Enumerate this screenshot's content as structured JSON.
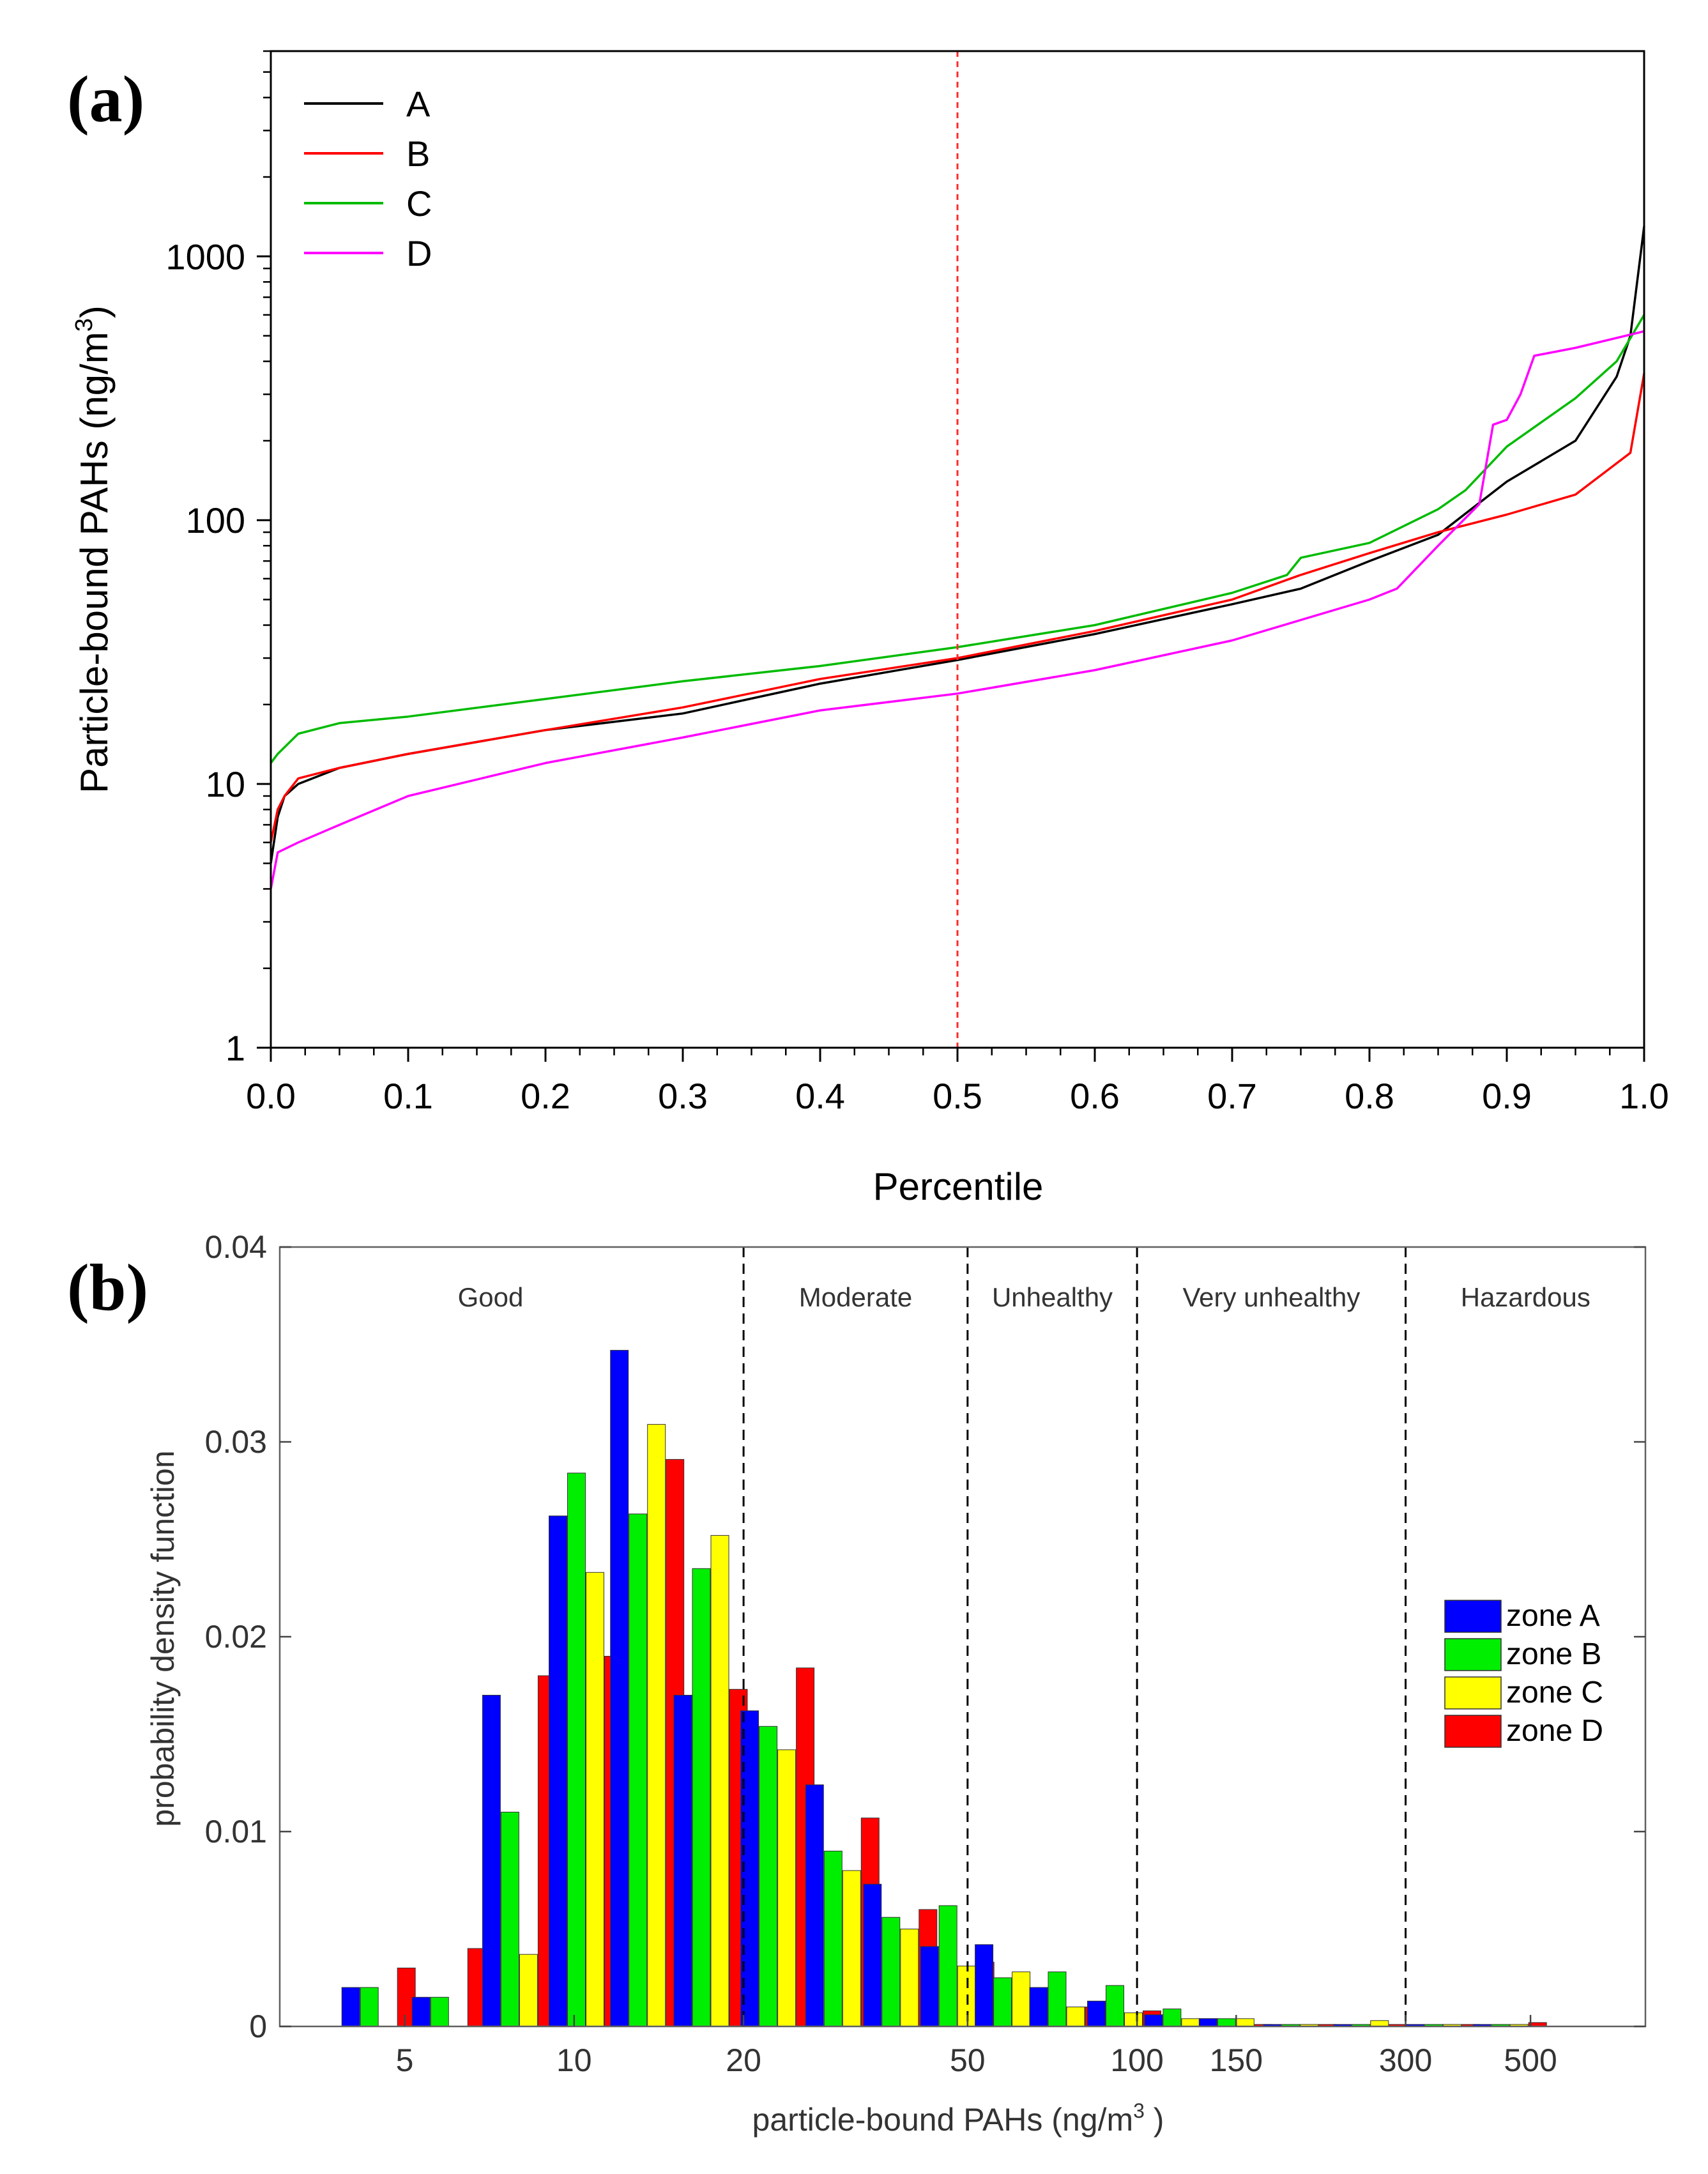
{
  "chart_data": [
    {
      "panel_label": "(a)",
      "type": "line",
      "title": "",
      "xlabel": "Percentile",
      "ylabel": "Particle-bound PAHs (ng/m",
      "ylabel_superscript": "3",
      "ylabel_close": ")",
      "xlim": [
        0,
        1
      ],
      "ylim": [
        1,
        6000
      ],
      "yscale": "log",
      "x_ticks": [
        "0.0",
        "0.1",
        "0.2",
        "0.3",
        "0.4",
        "0.5",
        "0.6",
        "0.7",
        "0.8",
        "0.9",
        "1.0"
      ],
      "y_ticks": [
        "1",
        "10",
        "100",
        "1000"
      ],
      "reference_line": {
        "x": 0.5,
        "style": "dashed",
        "color": "#ff2a2a"
      },
      "legend_position": "top-left",
      "series": [
        {
          "name": "A",
          "color": "#000000",
          "x": [
            0,
            0.005,
            0.01,
            0.02,
            0.05,
            0.1,
            0.2,
            0.3,
            0.4,
            0.5,
            0.6,
            0.7,
            0.75,
            0.8,
            0.85,
            0.9,
            0.95,
            0.98,
            0.99,
            1.0
          ],
          "y": [
            5,
            7.5,
            9,
            10,
            11.5,
            13,
            16,
            18.5,
            24,
            29.5,
            37,
            48,
            55,
            70,
            88,
            140,
            200,
            350,
            500,
            1300
          ]
        },
        {
          "name": "B",
          "color": "#ff0000",
          "x": [
            0,
            0.005,
            0.01,
            0.02,
            0.05,
            0.1,
            0.2,
            0.3,
            0.4,
            0.5,
            0.6,
            0.7,
            0.75,
            0.8,
            0.85,
            0.9,
            0.95,
            0.99,
            1.0
          ],
          "y": [
            6,
            8,
            9,
            10.5,
            11.5,
            13,
            16,
            19.5,
            25,
            30,
            38,
            50,
            62,
            75,
            90,
            105,
            125,
            180,
            360
          ]
        },
        {
          "name": "C",
          "color": "#00bb00",
          "x": [
            0,
            0.005,
            0.02,
            0.05,
            0.1,
            0.2,
            0.3,
            0.4,
            0.5,
            0.6,
            0.7,
            0.74,
            0.75,
            0.8,
            0.85,
            0.87,
            0.9,
            0.95,
            0.98,
            1.0
          ],
          "y": [
            12,
            13,
            15.5,
            17,
            18,
            21,
            24.5,
            28,
            33,
            40,
            53,
            62,
            72,
            82,
            110,
            130,
            190,
            290,
            400,
            600
          ]
        },
        {
          "name": "D",
          "color": "#ff00ff",
          "x": [
            0,
            0.005,
            0.02,
            0.05,
            0.1,
            0.2,
            0.3,
            0.4,
            0.5,
            0.6,
            0.7,
            0.8,
            0.82,
            0.85,
            0.88,
            0.89,
            0.9,
            0.91,
            0.92,
            0.95,
            1.0
          ],
          "y": [
            4,
            5.5,
            6,
            7,
            9,
            12,
            15,
            19,
            22,
            27,
            35,
            50,
            55,
            80,
            115,
            230,
            240,
            300,
            420,
            450,
            520
          ]
        }
      ]
    },
    {
      "panel_label": "(b)",
      "type": "bar",
      "title": "",
      "xlabel": "particle-bound PAHs (ng/m",
      "xlabel_superscript": "3",
      "xlabel_close": " )",
      "ylabel": "probability density function",
      "xscale": "log",
      "xlim": [
        3,
        800
      ],
      "ylim": [
        0,
        0.04
      ],
      "x_ticks": [
        "5",
        "10",
        "20",
        "50",
        "100",
        "150",
        "300",
        "500"
      ],
      "y_ticks": [
        "0",
        "0.01",
        "0.02",
        "0.03",
        "0.04"
      ],
      "thresholds": [
        20,
        50,
        100,
        300
      ],
      "regions": [
        "Good",
        "Moderate",
        "Unhealthy",
        "Very unhealthy",
        "Hazardous"
      ],
      "legend_position": "right",
      "bin_centers": [
        4.5,
        6,
        8,
        10.5,
        13.5,
        17.5,
        23,
        30,
        38,
        48,
        60,
        75,
        95,
        120,
        150,
        195,
        260,
        350,
        460
      ],
      "series": [
        {
          "name": "zone A",
          "color": "#0000ff",
          "values": [
            0.002,
            0.0015,
            0.017,
            0.0262,
            0.0347,
            0.017,
            0.0162,
            0.0124,
            0.0073,
            0.0041,
            0.0042,
            0.002,
            0.0013,
            0.0006,
            0.0004,
            0.0001,
            0.0001,
            0.0001,
            0.0001
          ]
        },
        {
          "name": "zone B",
          "color": "#00ee00",
          "values": [
            0.002,
            0.0015,
            0.011,
            0.0284,
            0.0263,
            0.0235,
            0.0154,
            0.009,
            0.0056,
            0.0062,
            0.0025,
            0.0028,
            0.0021,
            0.0009,
            0.0004,
            0.0001,
            0.0001,
            0.0001,
            0.0001
          ]
        },
        {
          "name": "zone C",
          "color": "#ffff00",
          "values": [
            0,
            0,
            0.0037,
            0.0233,
            0.0309,
            0.0252,
            0.0142,
            0.008,
            0.005,
            0.0031,
            0.0028,
            0.001,
            0.0007,
            0.0004,
            0.0004,
            0.0001,
            0.0003,
            0.0001,
            0.0001
          ]
        },
        {
          "name": "zone D",
          "color": "#ff0000",
          "values": [
            0.003,
            0.004,
            0.018,
            0.019,
            0.0291,
            0.0173,
            0.0184,
            0.0107,
            0.006,
            0.0033,
            0.002,
            0.001,
            0.0008,
            0.0004,
            0.0001,
            0.0001,
            0.0001,
            0.0001,
            0.0002
          ]
        }
      ]
    }
  ]
}
